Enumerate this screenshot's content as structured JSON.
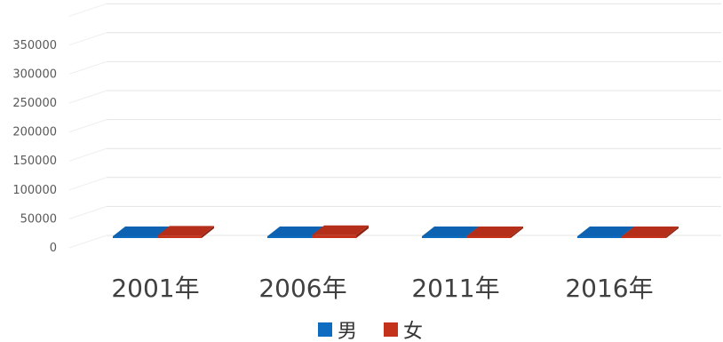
{
  "chart_data": {
    "type": "bar",
    "style": "3d-clustered-column",
    "categories": [
      "2001年",
      "2006年",
      "2011年",
      "2016年"
    ],
    "series": [
      {
        "name": "男",
        "color": "#0e6cc0",
        "values": [
          0,
          0,
          0,
          0
        ]
      },
      {
        "name": "女",
        "color": "#c4321c",
        "values": [
          4000,
          5000,
          3000,
          2000
        ]
      }
    ],
    "yticks": [
      "0",
      "50000",
      "100000",
      "150000",
      "200000",
      "250000",
      "300000",
      "350000"
    ],
    "ylim": [
      0,
      400000
    ],
    "grid": true,
    "legend_position": "bottom"
  }
}
